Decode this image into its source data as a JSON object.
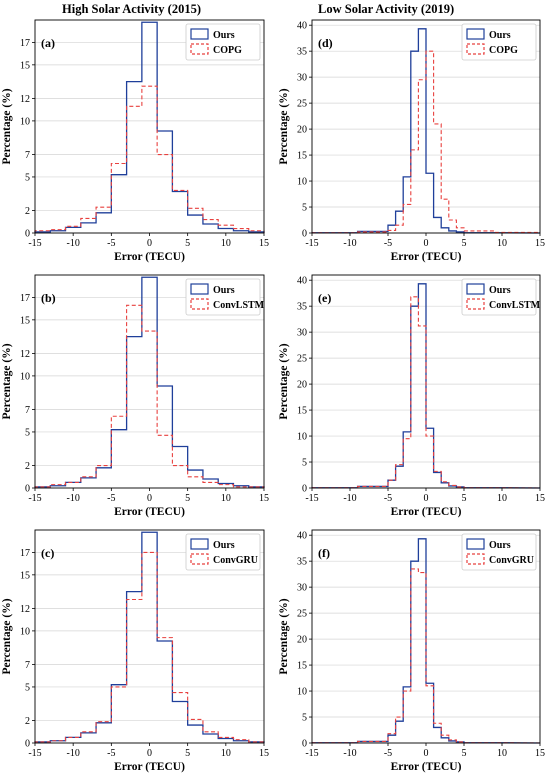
{
  "figure": {
    "title_left": "High Solar Activity (2015)",
    "title_right": "Low Solar Activity (2019)"
  },
  "styles": {
    "ours_color": "#1f3f9a",
    "baseline_color": "#e8413f"
  },
  "chart_data": [
    {
      "type": "step-histogram",
      "panel": "(a)",
      "xlabel": "Error (TECU)",
      "ylabel": "Percentage (%)",
      "xlim": [
        -15,
        15
      ],
      "ylim": [
        0,
        19
      ],
      "xticks": [
        -15,
        -10,
        -5,
        0,
        5,
        10,
        15
      ],
      "yticks": [
        0,
        2,
        5,
        7,
        10,
        12,
        15,
        17
      ],
      "grid": "horizontal",
      "legend_position": "top-right",
      "bin_edges": [
        -15,
        -13,
        -11,
        -9,
        -7,
        -5,
        -3,
        -1,
        1,
        3,
        5,
        7,
        9,
        11,
        13,
        15
      ],
      "series": [
        {
          "name": "Ours",
          "style": "solid",
          "values": [
            0.1,
            0.2,
            0.5,
            0.9,
            1.8,
            5.2,
            13.5,
            18.8,
            9.1,
            3.7,
            1.6,
            0.8,
            0.4,
            0.2,
            0.1
          ]
        },
        {
          "name": "COPG",
          "style": "dashed",
          "values": [
            0.2,
            0.3,
            0.6,
            1.3,
            2.3,
            6.2,
            11.3,
            13.1,
            7.0,
            3.8,
            2.2,
            1.2,
            0.7,
            0.4,
            0.2
          ]
        }
      ]
    },
    {
      "type": "step-histogram",
      "panel": "(b)",
      "xlabel": "Error (TECU)",
      "ylabel": "Percentage (%)",
      "xlim": [
        -15,
        15
      ],
      "ylim": [
        0,
        19
      ],
      "xticks": [
        -15,
        -10,
        -5,
        0,
        5,
        10,
        15
      ],
      "yticks": [
        0,
        2,
        5,
        7,
        10,
        12,
        15,
        17
      ],
      "grid": "horizontal",
      "legend_position": "top-right",
      "bin_edges": [
        -15,
        -13,
        -11,
        -9,
        -7,
        -5,
        -3,
        -1,
        1,
        3,
        5,
        7,
        9,
        11,
        13,
        15
      ],
      "series": [
        {
          "name": "Ours",
          "style": "solid",
          "values": [
            0.1,
            0.2,
            0.5,
            0.9,
            1.8,
            5.2,
            13.5,
            18.8,
            9.1,
            3.7,
            1.6,
            0.8,
            0.4,
            0.2,
            0.1
          ]
        },
        {
          "name": "ConvLSTM",
          "style": "dashed",
          "values": [
            0.1,
            0.3,
            0.5,
            1.0,
            2.0,
            6.4,
            16.3,
            14.0,
            4.7,
            2.0,
            1.0,
            0.5,
            0.3,
            0.1,
            0.1
          ]
        }
      ]
    },
    {
      "type": "step-histogram",
      "panel": "(c)",
      "xlabel": "Error (TECU)",
      "ylabel": "Percentage (%)",
      "xlim": [
        -15,
        15
      ],
      "ylim": [
        0,
        19
      ],
      "xticks": [
        -15,
        -10,
        -5,
        0,
        5,
        10,
        15
      ],
      "yticks": [
        0,
        2,
        5,
        7,
        10,
        12,
        15,
        17
      ],
      "grid": "horizontal",
      "legend_position": "top-right",
      "bin_edges": [
        -15,
        -13,
        -11,
        -9,
        -7,
        -5,
        -3,
        -1,
        1,
        3,
        5,
        7,
        9,
        11,
        13,
        15
      ],
      "series": [
        {
          "name": "Ours",
          "style": "solid",
          "values": [
            0.1,
            0.2,
            0.5,
            0.9,
            1.8,
            5.2,
            13.5,
            18.8,
            9.1,
            3.7,
            1.6,
            0.8,
            0.4,
            0.2,
            0.1
          ]
        },
        {
          "name": "ConvGRU",
          "style": "dashed",
          "values": [
            0.1,
            0.2,
            0.5,
            1.0,
            1.9,
            5.0,
            12.8,
            17.0,
            9.4,
            4.5,
            2.1,
            1.0,
            0.5,
            0.3,
            0.1
          ]
        }
      ]
    },
    {
      "type": "step-histogram",
      "panel": "(d)",
      "xlabel": "Error (TECU)",
      "ylabel": "Percentage (%)",
      "xlim": [
        -15,
        15
      ],
      "ylim": [
        0,
        41
      ],
      "xticks": [
        -15,
        -10,
        -5,
        0,
        5,
        10,
        15
      ],
      "yticks": [
        0,
        5,
        10,
        15,
        20,
        25,
        30,
        35,
        40
      ],
      "grid": "horizontal",
      "legend_position": "top-right",
      "bin_edges": [
        -15,
        -9,
        -5,
        -4,
        -3,
        -2,
        -1,
        0,
        1,
        2,
        3,
        4,
        5,
        9,
        15
      ],
      "series": [
        {
          "name": "Ours",
          "style": "solid",
          "values": [
            0.05,
            0.3,
            1.5,
            4.2,
            10.8,
            35.0,
            39.3,
            11.5,
            3.0,
            1.0,
            0.4,
            0.2,
            0.05
          ]
        },
        {
          "name": "COPG",
          "style": "dashed",
          "values": [
            0.05,
            0.2,
            0.5,
            1.5,
            5.5,
            16.0,
            29.5,
            35.0,
            21.0,
            6.5,
            2.5,
            1.0,
            0.4,
            0.1
          ]
        }
      ]
    },
    {
      "type": "step-histogram",
      "panel": "(e)",
      "xlabel": "Error (TECU)",
      "ylabel": "Percentage (%)",
      "xlim": [
        -15,
        15
      ],
      "ylim": [
        0,
        41
      ],
      "xticks": [
        -15,
        -10,
        -5,
        0,
        5,
        10,
        15
      ],
      "yticks": [
        0,
        5,
        10,
        15,
        20,
        25,
        30,
        35,
        40
      ],
      "grid": "horizontal",
      "legend_position": "top-right",
      "bin_edges": [
        -15,
        -9,
        -5,
        -4,
        -3,
        -2,
        -1,
        0,
        1,
        2,
        3,
        4,
        5,
        9,
        15
      ],
      "series": [
        {
          "name": "Ours",
          "style": "solid",
          "values": [
            0.05,
            0.3,
            1.5,
            4.2,
            10.8,
            35.0,
            39.3,
            11.5,
            3.0,
            1.0,
            0.4,
            0.2,
            0.05
          ]
        },
        {
          "name": "ConvLSTM",
          "style": "dashed",
          "values": [
            0.05,
            0.3,
            1.5,
            4.5,
            9.5,
            36.8,
            31.2,
            10.0,
            3.2,
            1.2,
            0.5,
            0.2,
            0.05
          ]
        }
      ]
    },
    {
      "type": "step-histogram",
      "panel": "(f)",
      "xlabel": "Error (TECU)",
      "ylabel": "Percentage (%)",
      "xlim": [
        -15,
        15
      ],
      "ylim": [
        0,
        41
      ],
      "xticks": [
        -15,
        -10,
        -5,
        0,
        5,
        10,
        15
      ],
      "yticks": [
        0,
        5,
        10,
        15,
        20,
        25,
        30,
        35,
        40
      ],
      "grid": "horizontal",
      "legend_position": "top-right",
      "bin_edges": [
        -15,
        -9,
        -5,
        -4,
        -3,
        -2,
        -1,
        0,
        1,
        2,
        3,
        4,
        5,
        9,
        15
      ],
      "series": [
        {
          "name": "Ours",
          "style": "solid",
          "values": [
            0.05,
            0.3,
            1.5,
            4.2,
            10.8,
            35.0,
            39.3,
            11.5,
            3.0,
            1.0,
            0.4,
            0.2,
            0.05
          ]
        },
        {
          "name": "ConvGRU",
          "style": "dashed",
          "values": [
            0.05,
            0.3,
            1.8,
            5.0,
            10.0,
            33.5,
            32.8,
            11.0,
            3.8,
            1.5,
            0.6,
            0.2,
            0.05
          ]
        }
      ]
    }
  ]
}
